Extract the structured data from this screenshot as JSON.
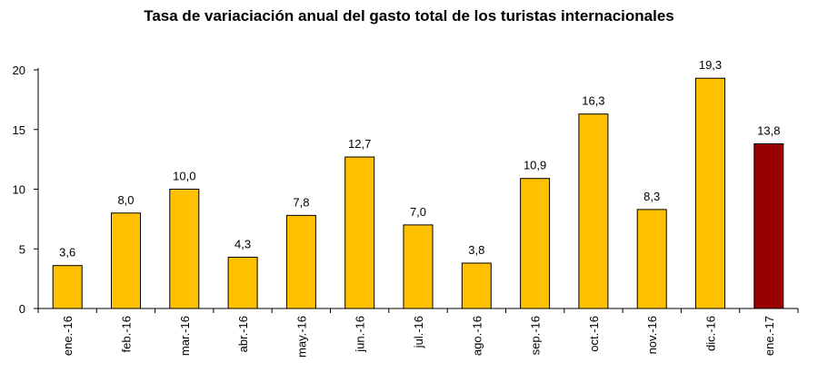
{
  "chart_data": {
    "type": "bar",
    "title": "Tasa de variaciación anual del gasto total de los turistas internacionales",
    "xlabel": "",
    "ylabel": "",
    "categories": [
      "ene.-16",
      "feb.-16",
      "mar.-16",
      "abr.-16",
      "may.-16",
      "jun.-16",
      "jul.-16",
      "ago.-16",
      "sep.-16",
      "oct.-16",
      "nov.-16",
      "dic.-16",
      "ene.-17"
    ],
    "values": [
      3.6,
      8.0,
      10.0,
      4.3,
      7.8,
      12.7,
      7.0,
      3.8,
      10.9,
      16.3,
      8.3,
      19.3,
      13.8
    ],
    "value_labels": [
      "3,6",
      "8,0",
      "10,0",
      "4,3",
      "7,8",
      "12,7",
      "7,0",
      "3,8",
      "10,9",
      "16,3",
      "8,3",
      "19,3",
      "13,8"
    ],
    "ylim": [
      0,
      20
    ],
    "yticks": [
      0,
      5,
      10,
      15,
      20
    ],
    "grid": false,
    "legend": "none",
    "colors": {
      "bar": "#FFC000",
      "highlight_bar": "#990000",
      "bar_stroke": "#000000",
      "axis": "#000000"
    },
    "highlight_index": 12
  }
}
